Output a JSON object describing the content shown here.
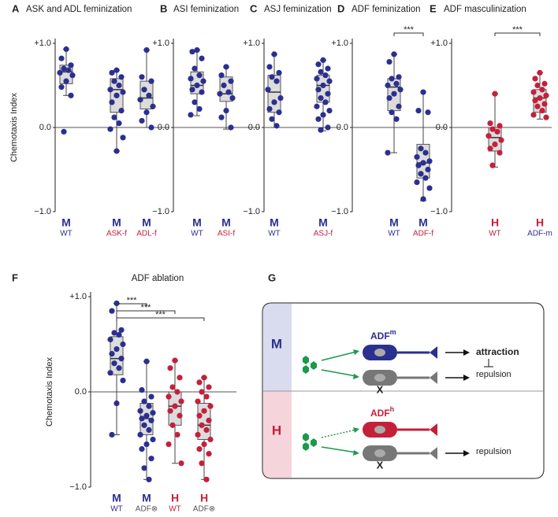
{
  "chart_data": [
    {
      "type": "box",
      "panel": "A",
      "title": "ASK and ADL feminization",
      "ylabel": "Chemotaxis Index",
      "ylim": [
        -1,
        1
      ],
      "yticks": [
        {
          "value": 1,
          "label": "+1.0"
        },
        {
          "value": 0,
          "label": "0.0"
        },
        {
          "value": -1,
          "label": "−1.0"
        }
      ],
      "groups": [
        {
          "sex": "M",
          "sex_color": "#2b2f8f",
          "label": "WT",
          "label_color": "#2b2f8f",
          "color": "#2b2f8f",
          "values": [
            0.93,
            0.82,
            0.74,
            0.7,
            0.68,
            0.65,
            0.62,
            0.55,
            0.48,
            0.38,
            -0.05
          ],
          "box": {
            "min": 0.38,
            "q1": 0.52,
            "median": 0.66,
            "q3": 0.74,
            "max": 0.93
          }
        },
        {
          "sex": "M",
          "sex_color": "#2b2f8f",
          "label": "ASK-f",
          "label_color": "#c4203a",
          "color": "#2b2f8f",
          "values": [
            0.68,
            0.65,
            0.6,
            0.55,
            0.5,
            0.45,
            0.42,
            0.38,
            0.3,
            0.2,
            0.12,
            0.05,
            -0.02,
            -0.12,
            -0.28
          ],
          "box": {
            "min": -0.28,
            "q1": 0.18,
            "median": 0.45,
            "q3": 0.58,
            "max": 0.68
          }
        },
        {
          "sex": "M",
          "sex_color": "#2b2f8f",
          "label": "ADL-f",
          "label_color": "#c4203a",
          "color": "#2b2f8f",
          "values": [
            0.92,
            0.6,
            0.55,
            0.45,
            0.38,
            0.33,
            0.25,
            0.18,
            0.08,
            0.0
          ],
          "box": {
            "min": 0.0,
            "q1": 0.22,
            "median": 0.35,
            "q3": 0.55,
            "max": 0.92
          }
        }
      ]
    },
    {
      "type": "box",
      "panel": "B",
      "title": "ASI feminization",
      "ylim": [
        -1,
        1
      ],
      "yticks": [
        {
          "value": 1,
          "label": "+1.0"
        },
        {
          "value": 0,
          "label": "0.0"
        },
        {
          "value": -1,
          "label": "−1.0"
        }
      ],
      "groups": [
        {
          "sex": "M",
          "sex_color": "#2b2f8f",
          "label": "WT",
          "label_color": "#2b2f8f",
          "color": "#2b2f8f",
          "values": [
            0.92,
            0.9,
            0.82,
            0.7,
            0.62,
            0.58,
            0.55,
            0.5,
            0.45,
            0.42,
            0.3,
            0.22,
            0.15
          ],
          "box": {
            "min": 0.14,
            "q1": 0.4,
            "median": 0.5,
            "q3": 0.66,
            "max": 0.92
          }
        },
        {
          "sex": "M",
          "sex_color": "#2b2f8f",
          "label": "ASI-f",
          "label_color": "#c4203a",
          "color": "#2b2f8f",
          "values": [
            0.72,
            0.62,
            0.55,
            0.5,
            0.42,
            0.4,
            0.35,
            0.2,
            0.12,
            0.0
          ],
          "box": {
            "min": -0.02,
            "q1": 0.31,
            "median": 0.4,
            "q3": 0.6,
            "max": 0.72
          }
        }
      ]
    },
    {
      "type": "box",
      "panel": "C",
      "title": "ASJ feminization",
      "ylim": [
        -1,
        1
      ],
      "yticks": [
        {
          "value": 1,
          "label": "+1.0"
        },
        {
          "value": 0,
          "label": "0.0"
        },
        {
          "value": -1,
          "label": "−1.0"
        }
      ],
      "groups": [
        {
          "sex": "M",
          "sex_color": "#2b2f8f",
          "label": "WT",
          "label_color": "#2b2f8f",
          "color": "#2b2f8f",
          "values": [
            0.87,
            0.72,
            0.65,
            0.6,
            0.55,
            0.45,
            0.35,
            0.3,
            0.22,
            0.18,
            0.1,
            0.02
          ],
          "box": {
            "min": 0.0,
            "q1": 0.18,
            "median": 0.42,
            "q3": 0.62,
            "max": 0.87
          }
        },
        {
          "sex": "M",
          "sex_color": "#2b2f8f",
          "label": "ASJ-f",
          "label_color": "#c4203a",
          "color": "#2b2f8f",
          "values": [
            0.8,
            0.75,
            0.7,
            0.66,
            0.62,
            0.58,
            0.55,
            0.5,
            0.45,
            0.4,
            0.35,
            0.3,
            0.25,
            0.2,
            0.15,
            0.1,
            0.0,
            -0.03
          ],
          "box": {
            "min": -0.04,
            "q1": 0.3,
            "median": 0.5,
            "q3": 0.62,
            "max": 0.8
          }
        }
      ]
    },
    {
      "type": "box",
      "panel": "D",
      "title": "ADF feminization",
      "ylim": [
        -1,
        1
      ],
      "yticks": [
        {
          "value": 1,
          "label": "+1.0"
        },
        {
          "value": 0,
          "label": "0.0"
        },
        {
          "value": -1,
          "label": "−1.0"
        }
      ],
      "groups": [
        {
          "sex": "M",
          "sex_color": "#2b2f8f",
          "label": "WT",
          "label_color": "#2b2f8f",
          "color": "#2b2f8f",
          "values": [
            0.87,
            0.78,
            0.6,
            0.58,
            0.52,
            0.5,
            0.45,
            0.4,
            0.35,
            0.25,
            0.18,
            0.1,
            -0.3
          ],
          "box": {
            "min": -0.3,
            "q1": 0.2,
            "median": 0.48,
            "q3": 0.58,
            "max": 0.87
          }
        },
        {
          "sex": "M",
          "sex_color": "#2b2f8f",
          "label": "ADF-f",
          "label_color": "#c4203a",
          "color": "#2b2f8f",
          "values": [
            0.42,
            0.2,
            0.18,
            -0.25,
            -0.3,
            -0.35,
            -0.4,
            -0.42,
            -0.45,
            -0.5,
            -0.55,
            -0.6,
            -0.65,
            -0.72,
            -0.85
          ],
          "box": {
            "min": -0.87,
            "q1": -0.6,
            "median": -0.42,
            "q3": -0.2,
            "max": 0.42
          }
        }
      ],
      "significance": [
        {
          "from": 0,
          "to": 1,
          "label": "***"
        }
      ]
    },
    {
      "type": "box",
      "panel": "E",
      "title": "ADF masculinization",
      "ylim": [
        -1,
        1
      ],
      "yticks": [
        {
          "value": 1,
          "label": "+1.0"
        },
        {
          "value": 0,
          "label": "0.0"
        },
        {
          "value": -1,
          "label": "−1.0"
        }
      ],
      "groups": [
        {
          "sex": "H",
          "sex_color": "#c4203a",
          "label": "WT",
          "label_color": "#c4203a",
          "color": "#c4203a",
          "values": [
            0.4,
            0.05,
            0.02,
            -0.02,
            -0.05,
            -0.1,
            -0.15,
            -0.2,
            -0.25,
            -0.3,
            -0.45
          ],
          "box": {
            "min": -0.47,
            "q1": -0.28,
            "median": -0.12,
            "q3": 0.0,
            "max": 0.4
          }
        },
        {
          "sex": "H",
          "sex_color": "#c4203a",
          "label": "ADF-m",
          "label_color": "#2b2f8f",
          "color": "#c4203a",
          "values": [
            0.65,
            0.58,
            0.52,
            0.5,
            0.45,
            0.42,
            0.38,
            0.35,
            0.32,
            0.28,
            0.25,
            0.2,
            0.15,
            0.12
          ],
          "box": {
            "min": 0.1,
            "q1": 0.18,
            "median": 0.35,
            "q3": 0.45,
            "max": 0.65
          }
        }
      ],
      "significance": [
        {
          "from": 0,
          "to": 1,
          "label": "***"
        }
      ]
    },
    {
      "type": "box",
      "panel": "F",
      "title": "ADF ablation",
      "ylabel": "Chemotaxis Index",
      "ylim": [
        -1,
        1
      ],
      "yticks": [
        {
          "value": 1,
          "label": "+1.0"
        },
        {
          "value": 0,
          "label": "0.0"
        },
        {
          "value": -1,
          "label": "−1.0"
        }
      ],
      "groups": [
        {
          "sex": "M",
          "sex_color": "#2b2f8f",
          "label": "WT",
          "label_color": "#2b2f8f",
          "color": "#2b2f8f",
          "values": [
            0.93,
            0.85,
            0.65,
            0.62,
            0.6,
            0.55,
            0.5,
            0.45,
            0.4,
            0.35,
            0.3,
            0.25,
            0.2,
            0.12,
            -0.12,
            -0.45
          ],
          "box": {
            "min": -0.45,
            "q1": 0.18,
            "median": 0.35,
            "q3": 0.58,
            "max": 0.93
          }
        },
        {
          "sex": "M",
          "sex_color": "#2b2f8f",
          "label": "ADF⊗",
          "label_color": "#555555",
          "color": "#2b2f8f",
          "values": [
            0.32,
            0.02,
            -0.05,
            -0.1,
            -0.15,
            -0.2,
            -0.22,
            -0.25,
            -0.28,
            -0.3,
            -0.35,
            -0.4,
            -0.45,
            -0.5,
            -0.55,
            -0.6,
            -0.7,
            -0.8,
            -0.92
          ],
          "box": {
            "min": -0.92,
            "q1": -0.45,
            "median": -0.28,
            "q3": -0.12,
            "max": 0.32
          }
        },
        {
          "sex": "H",
          "sex_color": "#c4203a",
          "label": "WT",
          "label_color": "#c4203a",
          "color": "#c4203a",
          "values": [
            0.33,
            0.25,
            0.15,
            0.05,
            0.0,
            -0.05,
            -0.1,
            -0.15,
            -0.2,
            -0.25,
            -0.35,
            -0.45,
            -0.55,
            -0.75
          ],
          "box": {
            "min": -0.75,
            "q1": -0.35,
            "median": -0.15,
            "q3": 0.0,
            "max": 0.33
          }
        },
        {
          "sex": "H",
          "sex_color": "#c4203a",
          "label": "ADF⊗",
          "label_color": "#555555",
          "color": "#c4203a",
          "values": [
            0.15,
            0.1,
            0.05,
            0.0,
            -0.05,
            -0.1,
            -0.15,
            -0.2,
            -0.25,
            -0.3,
            -0.35,
            -0.4,
            -0.45,
            -0.5,
            -0.55,
            -0.6,
            -0.65,
            -0.75,
            -0.92
          ],
          "box": {
            "min": -0.92,
            "q1": -0.5,
            "median": -0.35,
            "q3": -0.12,
            "max": 0.15
          }
        }
      ],
      "significance": [
        {
          "from": 0,
          "to": 1,
          "label": "***"
        },
        {
          "from": 0,
          "to": 2,
          "label": "***"
        },
        {
          "from": 0,
          "to": 3,
          "label": "***"
        }
      ]
    }
  ],
  "diagram": {
    "label": "G",
    "rows": [
      {
        "sex": "M",
        "neuron": "ADF",
        "superscript": "m",
        "outputs": [
          "attraction",
          "repulsion"
        ],
        "other": "X"
      },
      {
        "sex": "H",
        "neuron": "ADF",
        "superscript": "h",
        "outputs": [
          "repulsion"
        ],
        "other": "X"
      }
    ]
  }
}
